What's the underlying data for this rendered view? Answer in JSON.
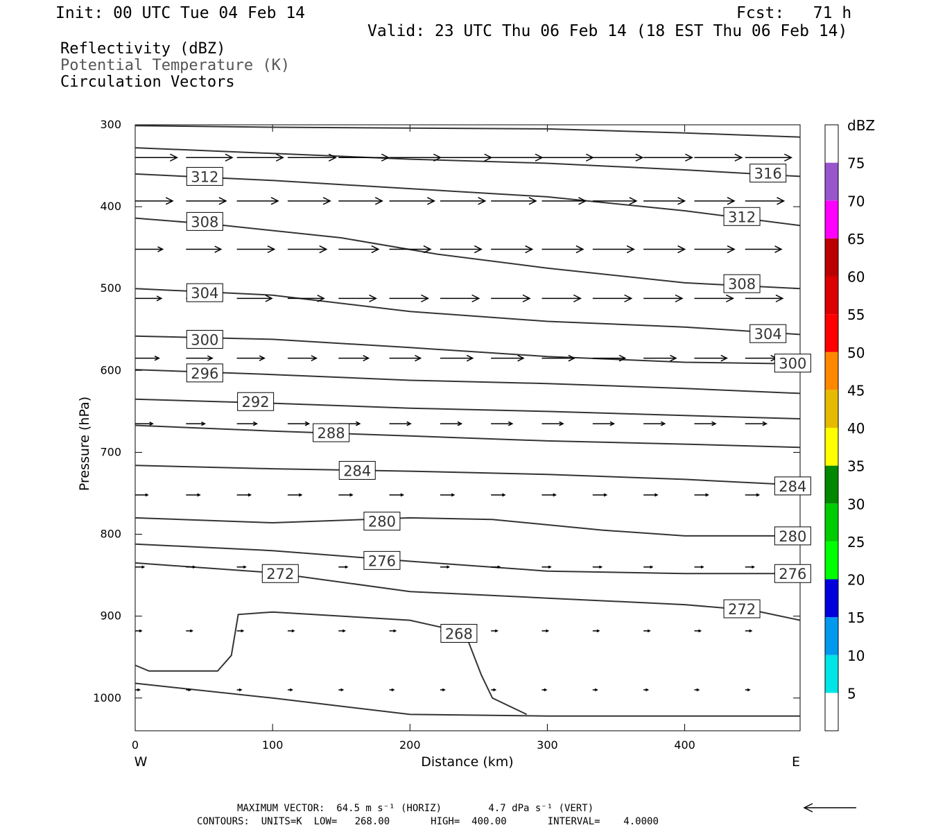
{
  "header": {
    "init": "Init: 00 UTC Tue 04 Feb 14",
    "fcst": "Fcst:   71 h",
    "valid": "Valid: 23 UTC Thu 06 Feb 14 (18 EST Thu 06 Feb 14)"
  },
  "fields": {
    "reflectivity": "Reflectivity (dBZ)",
    "theta": "Potential Temperature (K)",
    "vectors": "Circulation Vectors"
  },
  "chart_data": {
    "type": "line",
    "xlabel": "Distance (km)",
    "ylabel": "Pressure (hPa)",
    "xlim": [
      0,
      484
    ],
    "ylim": [
      1040,
      300
    ],
    "x_ticks": [
      0,
      100,
      200,
      300,
      400
    ],
    "y_ticks": [
      300,
      400,
      500,
      600,
      700,
      800,
      900,
      1000
    ],
    "x_end_labels": {
      "left": "W",
      "right": "E"
    },
    "contours": [
      {
        "label": "316",
        "label_at": [
          447,
          359
        ],
        "points": [
          [
            0,
            301
          ],
          [
            100,
            303
          ],
          [
            200,
            304
          ],
          [
            300,
            305
          ],
          [
            400,
            310
          ],
          [
            484,
            315
          ]
        ]
      },
      {
        "label": "312",
        "label_at": [
          37,
          363
        ],
        "points": [
          [
            0,
            328
          ],
          [
            100,
            335
          ],
          [
            200,
            342
          ],
          [
            300,
            347
          ],
          [
            400,
            355
          ],
          [
            484,
            363
          ]
        ]
      },
      {
        "label": "312",
        "label_at": [
          428,
          412
        ],
        "points": [
          [
            0,
            360
          ],
          [
            100,
            368
          ],
          [
            200,
            378
          ],
          [
            300,
            388
          ],
          [
            400,
            405
          ],
          [
            484,
            423
          ]
        ]
      },
      {
        "label": "308",
        "label_at": [
          37,
          418
        ],
        "points": [
          [
            0,
            414
          ],
          [
            60,
            422
          ],
          [
            150,
            438
          ],
          [
            220,
            458
          ],
          [
            300,
            475
          ],
          [
            400,
            493
          ],
          [
            484,
            500
          ]
        ]
      },
      {
        "label": "308",
        "label_at": [
          428,
          494
        ],
        "points": []
      },
      {
        "label": "304",
        "label_at": [
          37,
          505
        ],
        "points": [
          [
            0,
            500
          ],
          [
            100,
            508
          ],
          [
            200,
            528
          ],
          [
            300,
            540
          ],
          [
            400,
            547
          ],
          [
            484,
            556
          ]
        ]
      },
      {
        "label": "304",
        "label_at": [
          447,
          555
        ],
        "points": []
      },
      {
        "label": "300",
        "label_at": [
          37,
          562
        ],
        "points": [
          [
            0,
            558
          ],
          [
            100,
            562
          ],
          [
            200,
            572
          ],
          [
            300,
            583
          ],
          [
            400,
            590
          ],
          [
            484,
            592
          ]
        ]
      },
      {
        "label": "300",
        "label_at": [
          465,
          591
        ],
        "points": []
      },
      {
        "label": "296",
        "label_at": [
          37,
          603
        ],
        "points": [
          [
            0,
            599
          ],
          [
            100,
            605
          ],
          [
            200,
            612
          ],
          [
            300,
            616
          ],
          [
            400,
            622
          ],
          [
            484,
            628
          ]
        ]
      },
      {
        "label": "292",
        "label_at": [
          74,
          638
        ],
        "points": [
          [
            0,
            635
          ],
          [
            100,
            640
          ],
          [
            200,
            646
          ],
          [
            300,
            650
          ],
          [
            400,
            655
          ],
          [
            484,
            659
          ]
        ]
      },
      {
        "label": "288",
        "label_at": [
          129,
          676
        ],
        "points": [
          [
            0,
            667
          ],
          [
            100,
            674
          ],
          [
            200,
            680
          ],
          [
            300,
            686
          ],
          [
            400,
            690
          ],
          [
            484,
            694
          ]
        ]
      },
      {
        "label": "284",
        "label_at": [
          148,
          722
        ],
        "points": [
          [
            0,
            716
          ],
          [
            100,
            720
          ],
          [
            200,
            723
          ],
          [
            300,
            727
          ],
          [
            400,
            733
          ],
          [
            484,
            740
          ]
        ]
      },
      {
        "label": "284",
        "label_at": [
          465,
          741
        ],
        "points": []
      },
      {
        "label": "280",
        "label_at": [
          166,
          784
        ],
        "points": [
          [
            0,
            780
          ],
          [
            100,
            786
          ],
          [
            200,
            780
          ],
          [
            260,
            782
          ],
          [
            340,
            795
          ],
          [
            400,
            802
          ],
          [
            484,
            802
          ]
        ]
      },
      {
        "label": "280",
        "label_at": [
          465,
          802
        ],
        "points": []
      },
      {
        "label": "276",
        "label_at": [
          166,
          832
        ],
        "points": [
          [
            0,
            812
          ],
          [
            100,
            820
          ],
          [
            200,
            833
          ],
          [
            300,
            845
          ],
          [
            400,
            848
          ],
          [
            484,
            848
          ]
        ]
      },
      {
        "label": "276",
        "label_at": [
          465,
          848
        ],
        "points": []
      },
      {
        "label": "272",
        "label_at": [
          92,
          848
        ],
        "points": [
          [
            0,
            835
          ],
          [
            100,
            847
          ],
          [
            200,
            870
          ],
          [
            300,
            878
          ],
          [
            400,
            886
          ],
          [
            450,
            893
          ],
          [
            484,
            905
          ]
        ]
      },
      {
        "label": "272",
        "label_at": [
          428,
          891
        ],
        "points": []
      },
      {
        "label": "268",
        "label_at": [
          222,
          921
        ],
        "points": [
          [
            0,
            960
          ],
          [
            10,
            967
          ],
          [
            60,
            967
          ],
          [
            70,
            948
          ],
          [
            75,
            898
          ],
          [
            100,
            895
          ],
          [
            200,
            905
          ],
          [
            240,
            920
          ],
          [
            252,
            972
          ],
          [
            260,
            1000
          ],
          [
            285,
            1020
          ]
        ]
      }
    ],
    "ground": [
      [
        0,
        982
      ],
      [
        100,
        1000
      ],
      [
        200,
        1020
      ],
      [
        300,
        1022
      ],
      [
        484,
        1022
      ]
    ],
    "vectors": {
      "max_horiz_ms": 64.5,
      "max_vert_dpas": 4.7,
      "x_cols": [
        0,
        37,
        74,
        111,
        148,
        185,
        222,
        259,
        296,
        333,
        370,
        407,
        444
      ],
      "rows": [
        {
          "p": 340,
          "u": [
            0.67,
            0.74,
            0.74,
            0.77,
            0.8,
            0.82,
            0.82,
            0.82,
            0.82,
            0.8,
            0.78,
            0.76,
            0.74
          ]
        },
        {
          "p": 393,
          "u": [
            0.6,
            0.64,
            0.66,
            0.68,
            0.7,
            0.72,
            0.72,
            0.72,
            0.7,
            0.7,
            0.66,
            0.64,
            0.62
          ]
        },
        {
          "p": 452,
          "u": [
            0.44,
            0.56,
            0.6,
            0.62,
            0.64,
            0.66,
            0.66,
            0.66,
            0.66,
            0.66,
            0.66,
            0.64,
            0.58
          ]
        },
        {
          "p": 512,
          "u": [
            0.42,
            0.5,
            0.56,
            0.58,
            0.6,
            0.62,
            0.62,
            0.62,
            0.62,
            0.62,
            0.62,
            0.62,
            0.6
          ]
        },
        {
          "p": 585,
          "u": [
            0.38,
            0.42,
            0.44,
            0.46,
            0.48,
            0.5,
            0.52,
            0.52,
            0.52,
            0.52,
            0.52,
            0.52,
            0.5
          ]
        },
        {
          "p": 665,
          "u": [
            0.28,
            0.3,
            0.32,
            0.34,
            0.34,
            0.34,
            0.34,
            0.34,
            0.34,
            0.34,
            0.34,
            0.34,
            0.34
          ]
        },
        {
          "p": 752,
          "u": [
            0.2,
            0.22,
            0.22,
            0.22,
            0.22,
            0.22,
            0.22,
            0.22,
            0.22,
            0.22,
            0.22,
            0.22,
            0.22
          ]
        },
        {
          "p": 840,
          "u": [
            0.14,
            0.14,
            0.14,
            0.14,
            0.14,
            0.14,
            0.14,
            0.14,
            0.14,
            0.14,
            0.14,
            0.14,
            0.14
          ]
        },
        {
          "p": 918,
          "u": [
            0.1,
            0.1,
            0.1,
            0.1,
            0.1,
            0.1,
            0.1,
            0.1,
            0.1,
            0.1,
            0.1,
            0.1,
            0.1
          ]
        },
        {
          "p": 990,
          "u": [
            0.07,
            0.07,
            0.07,
            0.07,
            0.07,
            0.07,
            0.07,
            0.07,
            0.07,
            0.07,
            0.07,
            0.07,
            0.07
          ]
        }
      ]
    },
    "colorbar": {
      "unit": "dBZ",
      "levels": [
        5,
        10,
        15,
        20,
        25,
        30,
        35,
        40,
        45,
        50,
        55,
        60,
        65,
        70,
        75
      ],
      "colors": [
        "#ffffff",
        "#00e5e5",
        "#0099ee",
        "#0000dd",
        "#00ff00",
        "#00cc00",
        "#008800",
        "#ffff00",
        "#e5bb00",
        "#ff8800",
        "#ff0000",
        "#dd0000",
        "#bb0000",
        "#ff00ff",
        "#9955cc",
        "#ffffff"
      ]
    }
  },
  "footer": {
    "max_vector": "MAXIMUM VECTOR:  64.5 m s⁻¹ (HORIZ)        4.7 dPa s⁻¹ (VERT)",
    "contours": "CONTOURS:  UNITS=K  LOW=   268.00       HIGH=  400.00       INTERVAL=    4.0000"
  }
}
